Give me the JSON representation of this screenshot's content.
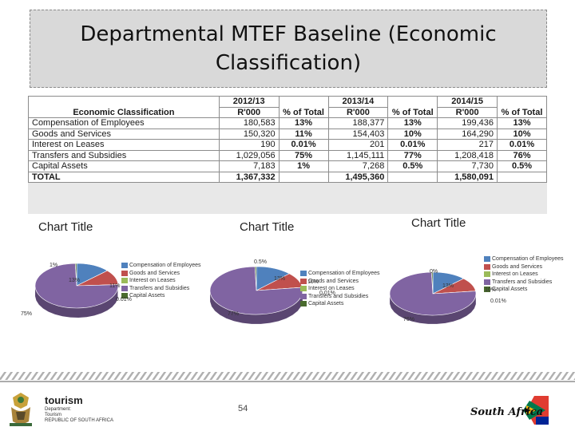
{
  "slide": {
    "title": "Departmental MTEF Baseline (Economic Classification)",
    "page_number": "54"
  },
  "table": {
    "headers": {
      "col_label": "Economic Classification",
      "years": [
        "2012/13",
        "2013/14",
        "2014/15"
      ],
      "unit": "R'000",
      "pct": "% of Total"
    },
    "rows": [
      {
        "label": "Compensation of Employees",
        "v1": "180,583",
        "p1": "13%",
        "v2": "188,377",
        "p2": "13%",
        "v3": "199,436",
        "p3": "13%"
      },
      {
        "label": "Goods and Services",
        "v1": "150,320",
        "p1": "11%",
        "v2": "154,403",
        "p2": "10%",
        "v3": "164,290",
        "p3": "10%"
      },
      {
        "label": "Interest on Leases",
        "v1": "190",
        "p1": "0.01%",
        "v2": "201",
        "p2": "0.01%",
        "v3": "217",
        "p3": "0.01%"
      },
      {
        "label": "Transfers and Subsidies",
        "v1": "1,029,056",
        "p1": "75%",
        "v2": "1,145,111",
        "p2": "77%",
        "v3": "1,208,418",
        "p3": "76%"
      },
      {
        "label": "Capital Assets",
        "v1": "7,183",
        "p1": "1%",
        "v2": "7,268",
        "p2": "0.5%",
        "v3": "7,730",
        "p3": "0.5%"
      },
      {
        "label": "TOTAL",
        "v1": "1,367,332",
        "p1": "",
        "v2": "1,495,360",
        "p2": "",
        "v3": "1,580,091",
        "p3": ""
      }
    ]
  },
  "chart_data": [
    {
      "type": "pie",
      "title": "Chart Title",
      "categories": [
        "Compensation of Employees",
        "Goods and Services",
        "Interest on Leases",
        "Transfers and Subsidies",
        "Capital Assets"
      ],
      "values": [
        180583,
        150320,
        190,
        1029056,
        7183
      ],
      "data_labels": [
        "13%",
        "11%",
        "0.01%",
        "75%",
        "1%"
      ],
      "colors": [
        "#4f81bd",
        "#c0504d",
        "#9bbb59",
        "#8064a2",
        "#4a6b2e"
      ],
      "legend": "right"
    },
    {
      "type": "pie",
      "title": "Chart Title",
      "categories": [
        "Compensation of Employees",
        "Goods and Services",
        "Interest on Leases",
        "Transfers and Subsidies",
        "Capital Assets"
      ],
      "values": [
        188377,
        154403,
        201,
        1145111,
        7268
      ],
      "data_labels": [
        "13%",
        "10%",
        "0.01%",
        "77%",
        "0.5%"
      ],
      "colors": [
        "#4f81bd",
        "#c0504d",
        "#9bbb59",
        "#8064a2",
        "#4a6b2e"
      ],
      "legend": "right"
    },
    {
      "type": "pie",
      "title": "Chart Title",
      "categories": [
        "Compensation of Employees",
        "Goods and Services",
        "Interest on Leases",
        "Transfers and Subsidies",
        "Capital Assets"
      ],
      "values": [
        199436,
        164290,
        217,
        1208418,
        7730
      ],
      "data_labels": [
        "13%",
        "10%",
        "0.01%",
        "76%",
        "0%"
      ],
      "colors": [
        "#4f81bd",
        "#c0504d",
        "#9bbb59",
        "#8064a2",
        "#4a6b2e"
      ],
      "legend": "right"
    }
  ],
  "footer": {
    "tourism_word": "tourism",
    "tourism_sub1": "Department:",
    "tourism_sub2": "Tourism",
    "tourism_sub3": "REPUBLIC OF SOUTH AFRICA",
    "sa_logo_text": "South Africa"
  }
}
